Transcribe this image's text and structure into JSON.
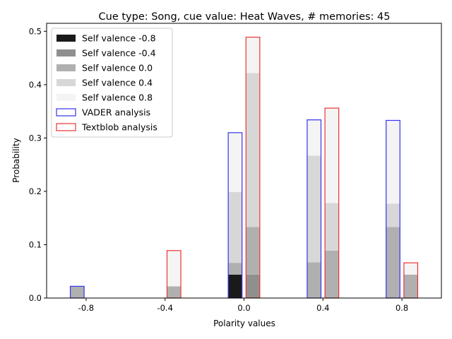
{
  "chart_data": {
    "type": "bar",
    "title": "Cue type: Song, cue value: Heat Waves, # memories: 45",
    "xlabel": "Polarity values",
    "ylabel": "Probability",
    "x_ticks": [
      "-0.8",
      "-0.4",
      "0.0",
      "0.4",
      "0.8"
    ],
    "x_tick_values": [
      -0.8,
      -0.4,
      0.0,
      0.4,
      0.8
    ],
    "y_ticks": [
      "0.0",
      "0.1",
      "0.2",
      "0.3",
      "0.4",
      "0.5"
    ],
    "y_tick_values": [
      0.0,
      0.1,
      0.2,
      0.3,
      0.4,
      0.5
    ],
    "xlim": [
      -1.0,
      1.0
    ],
    "ylim": [
      0,
      0.515
    ],
    "grid": false,
    "legend_position": "upper left",
    "stacked": true,
    "groups": [
      {
        "name": "VADER analysis",
        "edge_color": "#3333ee",
        "series": [
          {
            "name": "Self valence -0.8",
            "color": "#1a1a1a",
            "values": [
              0.0,
              0.0,
              0.044,
              0.0,
              0.0
            ]
          },
          {
            "name": "Self valence -0.4",
            "color": "#8f8f8f",
            "values": [
              0.0,
              0.0,
              0.0,
              0.0,
              0.0
            ]
          },
          {
            "name": "Self valence 0.0",
            "color": "#b0b0b0",
            "values": [
              0.022,
              0.0,
              0.022,
              0.067,
              0.133
            ]
          },
          {
            "name": "Self valence 0.4",
            "color": "#d7d7d7",
            "values": [
              0.0,
              0.0,
              0.133,
              0.2,
              0.044
            ]
          },
          {
            "name": "Self valence 0.8",
            "color": "#f4f4f4",
            "values": [
              0.0,
              0.0,
              0.111,
              0.067,
              0.156
            ]
          }
        ]
      },
      {
        "name": "Textblob analysis",
        "edge_color": "#ee3333",
        "series": [
          {
            "name": "Self valence -0.8",
            "color": "#1a1a1a",
            "values": [
              0.0,
              0.0,
              0.0,
              0.0,
              0.0
            ]
          },
          {
            "name": "Self valence -0.4",
            "color": "#8f8f8f",
            "values": [
              0.0,
              0.0,
              0.044,
              0.0,
              0.0
            ]
          },
          {
            "name": "Self valence 0.0",
            "color": "#b0b0b0",
            "values": [
              0.0,
              0.022,
              0.089,
              0.089,
              0.044
            ]
          },
          {
            "name": "Self valence 0.4",
            "color": "#d7d7d7",
            "values": [
              0.0,
              0.0,
              0.289,
              0.089,
              0.0
            ]
          },
          {
            "name": "Self valence 0.8",
            "color": "#f4f4f4",
            "values": [
              0.0,
              0.067,
              0.067,
              0.178,
              0.022
            ]
          }
        ]
      }
    ],
    "legend": [
      {
        "label": "Self valence -0.8",
        "kind": "fill",
        "color": "#1a1a1a"
      },
      {
        "label": "Self valence -0.4",
        "kind": "fill",
        "color": "#8f8f8f"
      },
      {
        "label": "Self valence 0.0",
        "kind": "fill",
        "color": "#b0b0b0"
      },
      {
        "label": "Self valence 0.4",
        "kind": "fill",
        "color": "#d7d7d7"
      },
      {
        "label": "Self valence 0.8",
        "kind": "fill",
        "color": "#f4f4f4"
      },
      {
        "label": "VADER analysis",
        "kind": "edge",
        "color": "#3333ee"
      },
      {
        "label": "Textblob analysis",
        "kind": "edge",
        "color": "#ee3333"
      }
    ]
  }
}
